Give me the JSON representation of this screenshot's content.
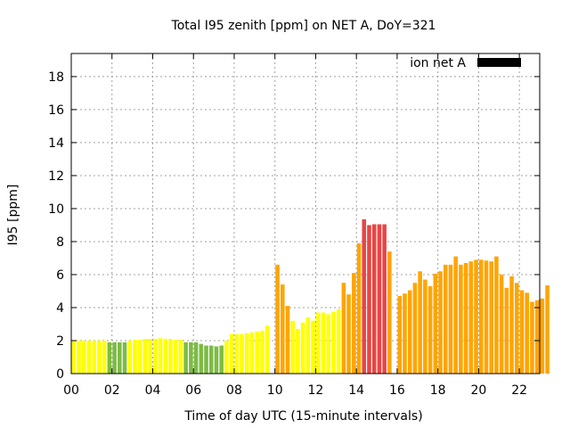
{
  "chart_data": {
    "type": "bar",
    "title": "Total I95 zenith [ppm] on NET A, DoY=321",
    "xlabel": "Time of day UTC (15-minute intervals)",
    "ylabel": "I95 [ppm]",
    "xlim": [
      0,
      23.0
    ],
    "ylim": [
      0,
      19.4
    ],
    "bin_hours": 0.25,
    "grid": true,
    "legend": {
      "label": "ion net A",
      "color": "#000000",
      "position": "top-right"
    },
    "x_ticks": [
      "00",
      "02",
      "04",
      "06",
      "08",
      "10",
      "12",
      "14",
      "16",
      "18",
      "20",
      "22"
    ],
    "y_ticks": [
      "0",
      "2",
      "4",
      "6",
      "8",
      "10",
      "12",
      "14",
      "16",
      "18"
    ],
    "colors": {
      "green": "#7dbb45",
      "yellow": "#ffff00",
      "orange": "#ffa500",
      "red": "#e84545"
    },
    "thresholds": {
      "green_below": 2.0,
      "yellow_below": 4.0,
      "orange_below": 8.0
    },
    "values": [
      2.0,
      2.0,
      2.0,
      2.0,
      2.0,
      2.0,
      2.0,
      1.9,
      1.9,
      1.9,
      1.9,
      2.0,
      2.05,
      2.05,
      2.1,
      2.1,
      2.1,
      2.15,
      2.1,
      2.1,
      2.05,
      2.05,
      1.9,
      1.9,
      1.9,
      1.8,
      1.7,
      1.7,
      1.65,
      1.7,
      2.0,
      2.4,
      2.4,
      2.4,
      2.45,
      2.5,
      2.55,
      2.6,
      2.9,
      null,
      6.6,
      5.4,
      4.1,
      3.2,
      2.7,
      3.1,
      3.4,
      3.2,
      3.7,
      3.7,
      3.6,
      3.75,
      3.9,
      5.5,
      4.8,
      6.1,
      7.9,
      9.35,
      9.0,
      9.05,
      9.05,
      9.05,
      7.4,
      null,
      4.7,
      4.85,
      5.05,
      5.5,
      6.2,
      5.7,
      5.3,
      6.05,
      6.2,
      6.6,
      6.6,
      7.1,
      6.6,
      6.7,
      6.8,
      6.9,
      6.9,
      6.85,
      6.8,
      7.1,
      6.0,
      5.2,
      5.9,
      5.5,
      5.05,
      4.9,
      4.35,
      4.45,
      4.55,
      5.35
    ]
  }
}
